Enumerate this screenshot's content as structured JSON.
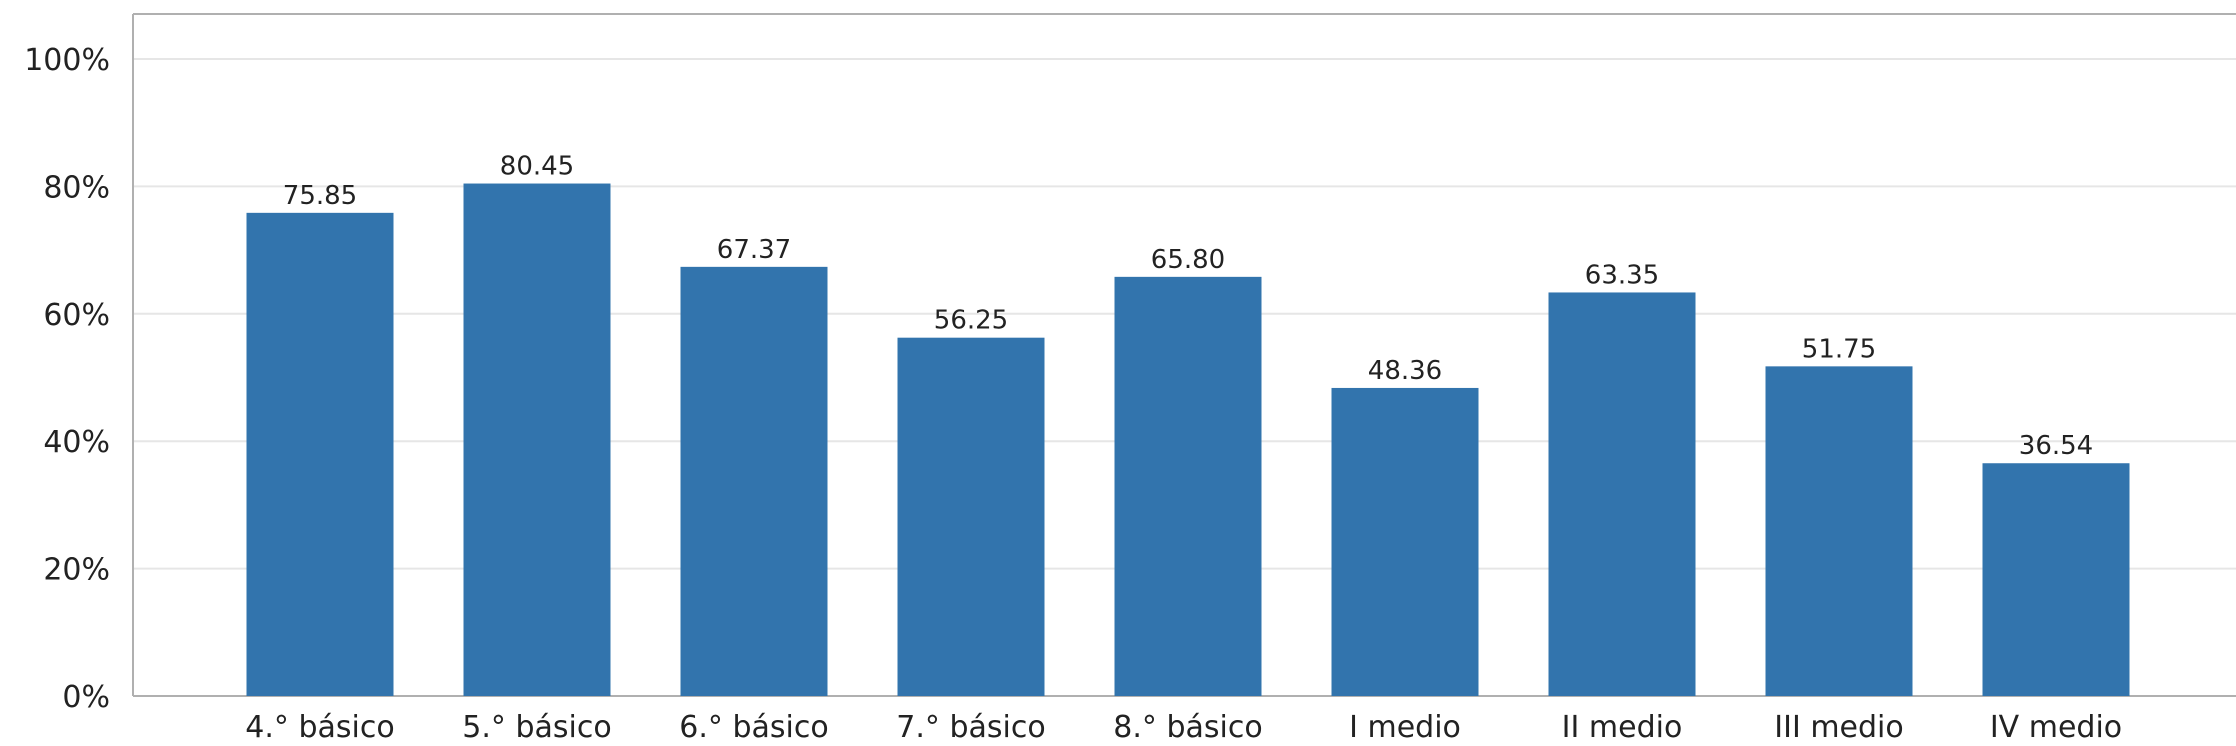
{
  "chart_data": {
    "type": "bar",
    "title": "",
    "xlabel": "",
    "ylabel": "",
    "categories": [
      "4.° básico",
      "5.° básico",
      "6.° básico",
      "7.° básico",
      "8.° básico",
      "I medio",
      "II medio",
      "III medio",
      "IV medio"
    ],
    "values": [
      75.85,
      80.45,
      67.37,
      56.25,
      65.8,
      48.36,
      63.35,
      51.75,
      36.54
    ],
    "data_labels": [
      "75.85",
      "80.45",
      "67.37",
      "56.25",
      "65.80",
      "48.36",
      "63.35",
      "51.75",
      "36.54"
    ],
    "ylim": [
      0,
      100
    ],
    "yticks": [
      0,
      20,
      40,
      60,
      80,
      100
    ],
    "ytick_labels": [
      "0%",
      "20%",
      "40%",
      "60%",
      "80%",
      "100%"
    ],
    "grid": "horizontal",
    "legend": "none",
    "colors": {
      "bar": "#3274ad",
      "grid": "#e6e6e6",
      "axis": "#b0b0b0",
      "text": "#222222"
    }
  }
}
